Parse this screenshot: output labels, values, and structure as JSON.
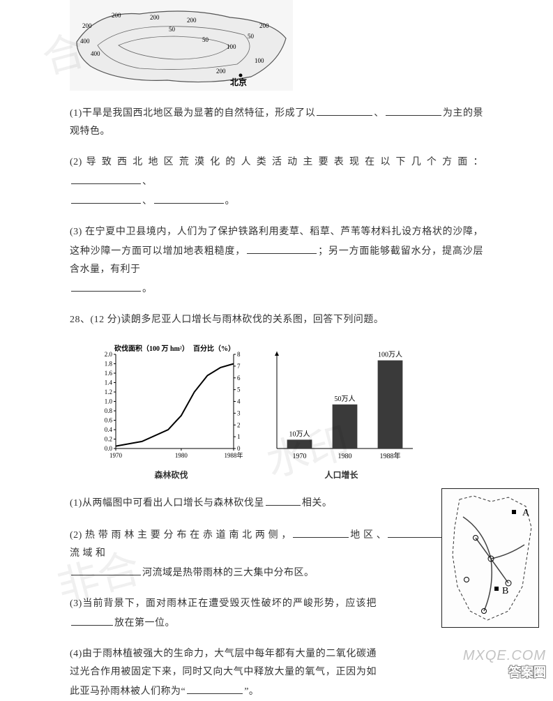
{
  "map_top": {
    "contour_labels": [
      "200",
      "200",
      "400",
      "400",
      "200",
      "50",
      "200",
      "50",
      "100",
      "50",
      "200",
      "100",
      "200"
    ],
    "city_label": "北京",
    "outline_color": "#555555",
    "background_color": "#f4f4f4"
  },
  "q1_text": "(1)干旱是我国西北地区最为显著的自然特征，形成了以",
  "q1_mid": "、",
  "q1_tail": "为主的景观特色。",
  "q2_head": "(2) 导 致 西 北 地 区 荒 漠 化 的 人 类 活 动 主 要 表 现 在 以 下 几 个 方 面 ：",
  "q2_sep": "、",
  "q2_sep2": "、",
  "q2_end": "。",
  "q3_a": "(3) 在宁夏中卫县境内，人们为了保护铁路利用麦草、稻草、芦苇等材料扎设方格状的沙障，这种沙障一方面可以增加地表粗糙度，",
  "q3_b": "；另一方面能够截留水分，提高沙层含水量，有利于",
  "q3_c": "。",
  "q28_intro": "28、(12 分)读朗多尼亚人口增长与雨林砍伐的关系图，回答下列问题。",
  "chart_line": {
    "type": "line-dual-axis",
    "y_left_title": "砍伐面积（100 万 hm²）",
    "y_right_title": "百分比（%）",
    "x_ticks": [
      1970,
      1980,
      1988
    ],
    "x_suffix": "年",
    "y_left_ticks": [
      0,
      0.2,
      0.4,
      0.6,
      0.8,
      1.0,
      1.2,
      1.4,
      1.6,
      1.8,
      2.0
    ],
    "y_right_ticks": [
      0,
      1,
      2,
      3,
      4,
      5,
      6,
      7,
      8
    ],
    "y_left_lim": [
      0,
      2.0
    ],
    "y_right_lim": [
      0,
      8
    ],
    "x_lim": [
      1970,
      1988
    ],
    "series": [
      {
        "x": 1970,
        "y_left": 0.05
      },
      {
        "x": 1974,
        "y_left": 0.15
      },
      {
        "x": 1978,
        "y_left": 0.4
      },
      {
        "x": 1980,
        "y_left": 0.7
      },
      {
        "x": 1982,
        "y_left": 1.2
      },
      {
        "x": 1984,
        "y_left": 1.55
      },
      {
        "x": 1986,
        "y_left": 1.72
      },
      {
        "x": 1988,
        "y_left": 1.8
      }
    ],
    "line_color": "#000000",
    "line_width": 2,
    "axis_color": "#000000",
    "tick_fontsize": 9,
    "title_fontsize": 10,
    "caption": "森林砍伐"
  },
  "chart_bar": {
    "type": "bar",
    "categories": [
      "1970",
      "1980",
      "1988年"
    ],
    "values": [
      10,
      50,
      100
    ],
    "value_suffix": "万人",
    "bar_color": "#3a3a3a",
    "bar_width": 0.55,
    "ylim": [
      0,
      110
    ],
    "axis_color": "#000000",
    "tick_fontsize": 10,
    "label_fontsize": 10,
    "caption": "人口增长"
  },
  "q28_1a": "(1)从两幅图中可看出人口增长与森林砍伐呈",
  "q28_1b": "相关。",
  "q28_2a": "(2) 热 带 雨 林 主 要 分 布 在 赤 道 南 北 两 侧 ，",
  "q28_2b": "地 区 、",
  "q28_2c": "河 流 域 和",
  "q28_2d": "河流域是热带雨林的三大集中分布区。",
  "q28_3a": "(3)当前背景下，面对雨林正在遭受毁灭性破坏的严峻形势，应该把",
  "q28_3b": "放在第一位。",
  "q28_4a": "(4)由于雨林植被强大的生命力，大气层中每年都有大量的二氧化碳通过光合作用被固定下来，同时又向大气中释放大量的氧气，正因为如此亚马孙雨林被人们称为“",
  "q28_4b": "”。",
  "small_map": {
    "labels": [
      "A",
      "B"
    ],
    "node_color": "#000000",
    "road_color": "#444444",
    "border_color": "#222222"
  },
  "watermarks": {
    "wm1": "答案",
    "wm2": "答案圈",
    "site": "MXQE.COM"
  }
}
